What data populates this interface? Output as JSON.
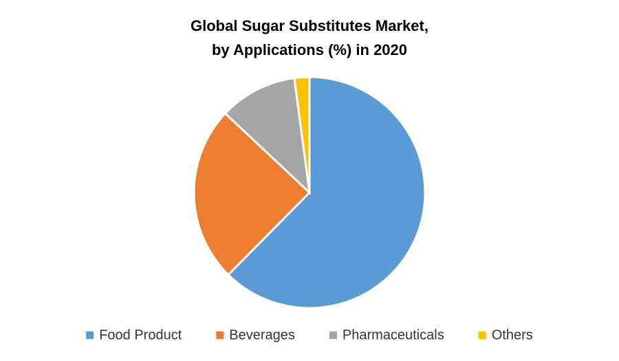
{
  "chart_data": {
    "type": "pie",
    "title": [
      "Global Sugar Substitutes Market,",
      "by Applications (%) in 2020"
    ],
    "categories": [
      "Food Product",
      "Beverages",
      "Pharmaceuticals",
      "Others"
    ],
    "values": [
      62.4,
      24.6,
      10.9,
      2.1
    ],
    "colors": [
      "#5b9bd5",
      "#ed7d31",
      "#a5a5a5",
      "#ffc000"
    ],
    "legend": "bottom"
  }
}
